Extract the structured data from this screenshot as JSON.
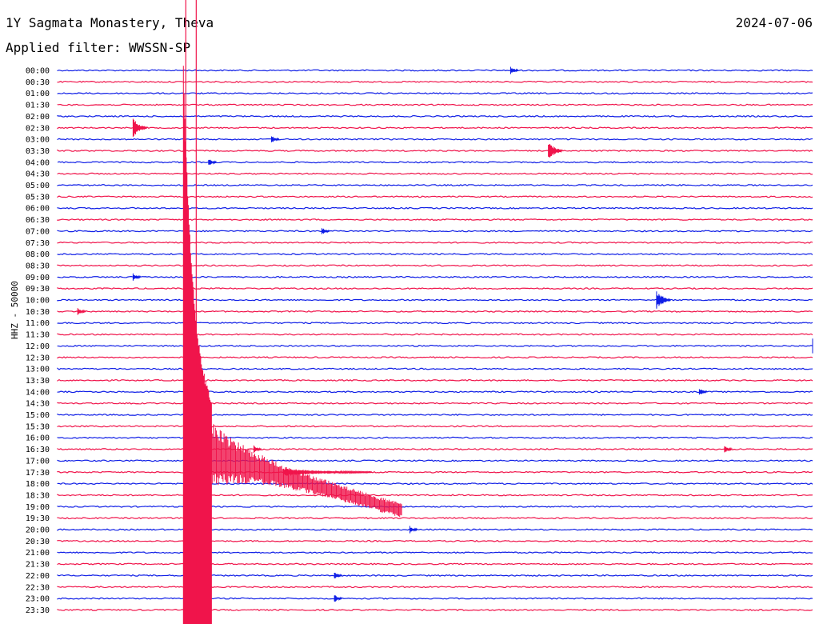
{
  "header": {
    "station": "1Y Sagmata Monastery, Theva",
    "date": "2024-07-06",
    "filter": "Applied filter: WWSSN-SP",
    "channel": "HHZ - 50000"
  },
  "colors": {
    "blue": "#0f1ee6",
    "red": "#f0144b",
    "label": "#000000"
  },
  "chart_data": {
    "type": "line",
    "title": "1Y Sagmata Monastery, Theva",
    "ylabel": "HHZ - 50000",
    "rows": [
      "00:00",
      "00:30",
      "01:00",
      "01:30",
      "02:00",
      "02:30",
      "03:00",
      "03:30",
      "04:00",
      "04:30",
      "05:00",
      "05:30",
      "06:00",
      "06:30",
      "07:00",
      "07:30",
      "08:00",
      "08:30",
      "09:00",
      "09:30",
      "10:00",
      "10:30",
      "11:00",
      "11:30",
      "12:00",
      "12:30",
      "13:00",
      "13:30",
      "14:00",
      "14:30",
      "15:00",
      "15:30",
      "16:00",
      "16:30",
      "17:00",
      "17:30",
      "18:00",
      "18:30",
      "19:00",
      "19:30",
      "20:00",
      "20:30",
      "21:00",
      "21:30",
      "22:00",
      "22:30",
      "23:00",
      "23:30"
    ],
    "row_colors": [
      "blue",
      "red"
    ],
    "trace_span_minutes": 30,
    "events": [
      {
        "row": "00:00",
        "minute": 18,
        "note": "small burst"
      },
      {
        "row": "02:30",
        "minute": 3,
        "note": "local event"
      },
      {
        "row": "03:00",
        "minute": 8.5,
        "note": "small event"
      },
      {
        "row": "03:30",
        "minute": 19.5,
        "note": "local event"
      },
      {
        "row": "04:00",
        "minute": 6,
        "note": "small event"
      },
      {
        "row": "07:00",
        "minute": 10.5,
        "note": "small event"
      },
      {
        "row": "09:00",
        "minute": 3,
        "note": "small event"
      },
      {
        "row": "10:00",
        "minute": 23.8,
        "note": "local event"
      },
      {
        "row": "10:30",
        "minute": 0.8,
        "note": "small event"
      },
      {
        "row": "12:00",
        "minute": 30,
        "note": "local event"
      },
      {
        "row": "14:00",
        "minute": 25.5,
        "note": "small event"
      },
      {
        "row": "16:30",
        "minute": 7.8,
        "note": "small event"
      },
      {
        "row": "16:30",
        "minute": 26.5,
        "note": "small event"
      },
      {
        "row": "17:30",
        "minute": 9,
        "note": "coda wavelets"
      },
      {
        "row": "20:00",
        "minute": 14,
        "note": "small event"
      },
      {
        "row": "22:00",
        "minute": 11,
        "note": "small event"
      },
      {
        "row": "23:00",
        "minute": 11,
        "note": "small event"
      }
    ],
    "teleseism": {
      "first_row": "16:00",
      "first_minute": 5,
      "note": "large teleseismic event, coda through 23:30"
    }
  }
}
